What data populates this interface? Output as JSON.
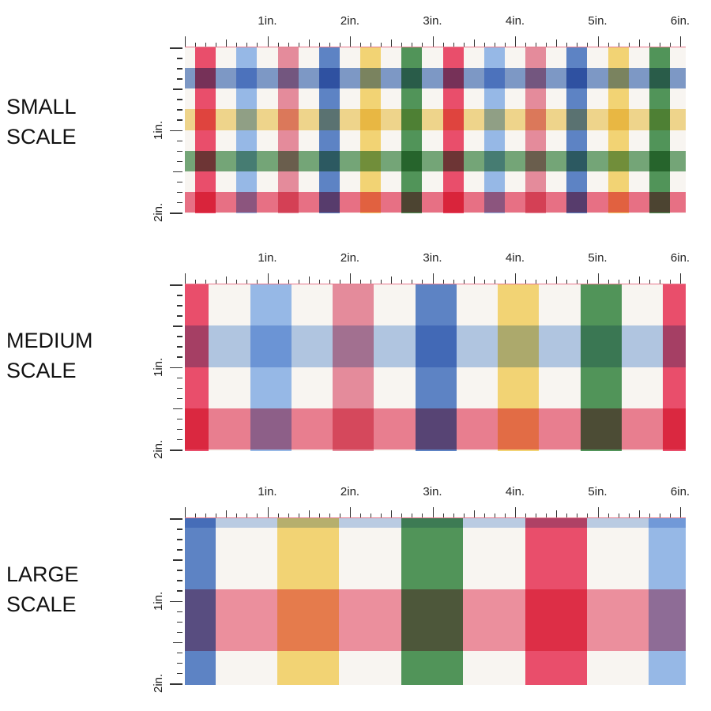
{
  "colors": {
    "white": "#f8f5f1",
    "red": "#e94e6b",
    "lightblue": "#96b8e6",
    "pink": "#e48b9b",
    "blue": "#5d83c4",
    "yellow": "#f2d374",
    "green": "#519459"
  },
  "ruler": {
    "h_labels": [
      "1in.",
      "2in.",
      "3in.",
      "4in.",
      "5in.",
      "6in."
    ],
    "v_labels": [
      "1in.",
      "2in."
    ]
  },
  "panels": [
    {
      "id": "small",
      "title_line1": "SMALL",
      "title_line2": "SCALE",
      "stripe_inches": 0.25,
      "column_sequence": [
        "white",
        "red",
        "white",
        "lightblue",
        "white",
        "pink",
        "white",
        "blue",
        "white",
        "yellow",
        "white",
        "green"
      ],
      "column_offset_inches": 0.125,
      "row_sequence": [
        "white",
        "blue",
        "white",
        "yellow",
        "white",
        "green",
        "white",
        "red"
      ],
      "band_opacity": 0.78
    },
    {
      "id": "medium",
      "title_line1": "MEDIUM",
      "title_line2": "SCALE",
      "stripe_inches": 0.5,
      "column_sequence": [
        "red",
        "white",
        "lightblue",
        "white",
        "pink",
        "white",
        "blue",
        "white",
        "yellow",
        "white",
        "green",
        "white"
      ],
      "column_offset_inches": 0.21,
      "row_sequence": [
        "white",
        "lightblue",
        "white",
        "red"
      ],
      "band_opacity": 0.7
    },
    {
      "id": "large",
      "title_line1": "LARGE",
      "title_line2": "SCALE",
      "stripe_inches": 0.75,
      "column_sequence": [
        "blue",
        "white",
        "yellow",
        "white",
        "green",
        "white",
        "red",
        "white",
        "lightblue",
        "white"
      ],
      "column_offset_inches": 0.38,
      "row_sequence": [
        "lightblue",
        "white",
        "red",
        "white"
      ],
      "row_offset_inches": 0.64,
      "band_opacity": 0.6
    }
  ]
}
